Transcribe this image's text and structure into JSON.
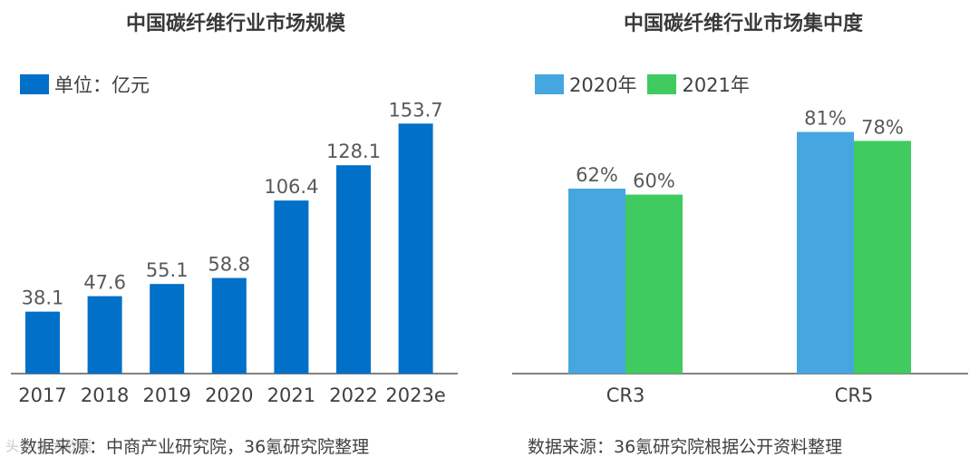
{
  "chart_data": [
    {
      "type": "bar",
      "title": "中国碳纤维行业市场规模",
      "legend": "单位：亿元",
      "categories": [
        "2017",
        "2018",
        "2019",
        "2020",
        "2021",
        "2022",
        "2023e"
      ],
      "values": [
        38.1,
        47.6,
        55.1,
        58.8,
        106.4,
        128.1,
        153.7
      ],
      "value_labels": [
        "38.1",
        "47.6",
        "55.1",
        "58.8",
        "106.4",
        "128.1",
        "153.7"
      ],
      "ylim": [
        0,
        160
      ],
      "color": "#0070C9",
      "source": "数据来源：中商产业研究院，36氪研究院整理"
    },
    {
      "type": "bar",
      "title": "中国碳纤维行业市场集中度",
      "categories": [
        "CR3",
        "CR5"
      ],
      "series": [
        {
          "name": "2020年",
          "values": [
            62,
            81
          ],
          "labels": [
            "62%",
            "81%"
          ],
          "color": "#46A6E0"
        },
        {
          "name": "2021年",
          "values": [
            60,
            78
          ],
          "labels": [
            "60%",
            "78%"
          ],
          "color": "#3FCB5F"
        }
      ],
      "ylim": [
        0,
        100
      ],
      "source": "数据来源：36氪研究院根据公开资料整理"
    }
  ],
  "watermark": "头条 @大数据"
}
